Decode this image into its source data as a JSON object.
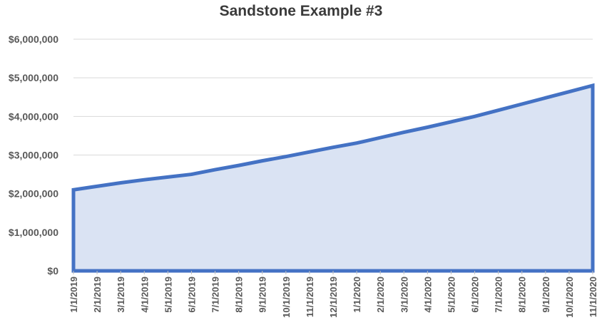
{
  "chart_data": {
    "type": "area",
    "title": "Sandstone Example #3",
    "xlabel": "",
    "ylabel": "",
    "categories": [
      "1/1/2019",
      "2/1/2019",
      "3/1/2019",
      "4/1/2019",
      "5/1/2019",
      "6/1/2019",
      "7/1/2019",
      "8/1/2019",
      "9/1/2019",
      "10/1/2019",
      "11/1/2019",
      "12/1/2019",
      "1/1/2020",
      "2/1/2020",
      "3/1/2020",
      "4/1/2020",
      "5/1/2020",
      "6/1/2020",
      "7/1/2020",
      "8/1/2020",
      "9/1/2020",
      "10/1/2020",
      "11/1/2020"
    ],
    "values": [
      2100000,
      2190000,
      2280000,
      2360000,
      2430000,
      2500000,
      2620000,
      2730000,
      2850000,
      2960000,
      3080000,
      3200000,
      3310000,
      3450000,
      3590000,
      3720000,
      3860000,
      4000000,
      4160000,
      4320000,
      4480000,
      4640000,
      4800000
    ],
    "yticks": [
      "$0",
      "$1,000,000",
      "$2,000,000",
      "$3,000,000",
      "$4,000,000",
      "$5,000,000",
      "$6,000,000"
    ],
    "ylim": [
      0,
      6000000
    ],
    "grid": true,
    "legend": "none",
    "colors": {
      "line": "#4472c4",
      "fill": "#dae3f3"
    }
  }
}
